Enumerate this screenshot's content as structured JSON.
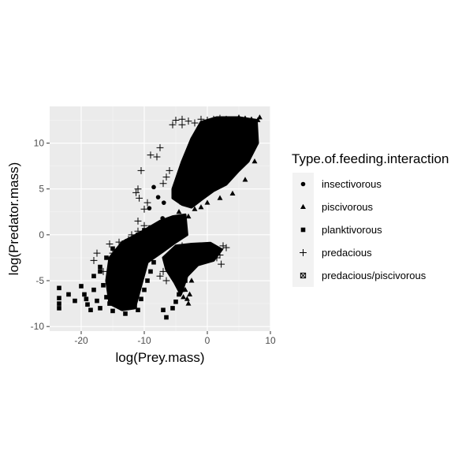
{
  "chart_data": {
    "type": "scatter",
    "xlabel": "log(Prey.mass)",
    "ylabel": "log(Predator.mass)",
    "xlim": [
      -25,
      10
    ],
    "ylim": [
      -10.5,
      14
    ],
    "x_ticks": [
      -20,
      -10,
      0,
      10
    ],
    "y_ticks": [
      -10,
      -5,
      0,
      5,
      10
    ],
    "x_tick_labels": [
      "-20",
      "-10",
      "0",
      "10"
    ],
    "y_tick_labels": [
      "-10",
      "-5",
      "0",
      "5",
      "10"
    ],
    "grid": true,
    "legend_position": "right",
    "panel_color": "#ebebeb",
    "point_color": "#000000",
    "legend": {
      "title": "Type.of.feeding.interaction",
      "entries": [
        {
          "label": "insectivorous",
          "shape": "circle"
        },
        {
          "label": "piscivorous",
          "shape": "triangle"
        },
        {
          "label": "planktivorous",
          "shape": "square"
        },
        {
          "label": "predacious",
          "shape": "plus"
        },
        {
          "label": "predacious/piscivorous",
          "shape": "square-x"
        }
      ]
    },
    "series": [
      {
        "name": "insectivorous",
        "shape": "circle",
        "points": [
          [
            -8.5,
            5.2
          ],
          [
            -7.8,
            4.1
          ],
          [
            -6.9,
            3.5
          ],
          [
            -9.2,
            2.9
          ],
          [
            -7.1,
            1.8
          ],
          [
            -6.2,
            0.9
          ]
        ]
      },
      {
        "name": "piscivorous",
        "shape": "triangle",
        "points": [
          [
            -3,
            5
          ],
          [
            -2.5,
            6.2
          ],
          [
            -2,
            7
          ],
          [
            -1.5,
            7.8
          ],
          [
            -1,
            8.5
          ],
          [
            -0.5,
            9
          ],
          [
            0,
            9.5
          ],
          [
            0.5,
            10
          ],
          [
            1,
            10.5
          ],
          [
            1.5,
            11
          ],
          [
            2,
            11.4
          ],
          [
            2.5,
            11.8
          ],
          [
            3,
            12.1
          ],
          [
            3.5,
            12.4
          ],
          [
            4,
            12.6
          ],
          [
            5,
            12.8
          ],
          [
            6,
            12.7
          ],
          [
            7,
            12.6
          ],
          [
            8,
            12.5
          ],
          [
            -4,
            3.5
          ],
          [
            -4.5,
            2.5
          ],
          [
            -3.5,
            4
          ],
          [
            1,
            5
          ],
          [
            2,
            6
          ],
          [
            3,
            7
          ],
          [
            4,
            8
          ],
          [
            5,
            9
          ],
          [
            6,
            10
          ],
          [
            7,
            11
          ],
          [
            8.3,
            12.8
          ],
          [
            7.5,
            8
          ],
          [
            6,
            6
          ],
          [
            4,
            4.5
          ],
          [
            2,
            4
          ],
          [
            0,
            3.5
          ],
          [
            -1,
            3
          ],
          [
            -2,
            2.8
          ],
          [
            -3,
            2
          ],
          [
            -4,
            -5
          ],
          [
            -3.5,
            -6
          ],
          [
            -3.2,
            -7
          ],
          [
            -3,
            -7.5
          ],
          [
            -4.5,
            -5.5
          ],
          [
            -5,
            -4.8
          ],
          [
            -2.5,
            -5
          ],
          [
            -2.8,
            -6.5
          ],
          [
            -3.8,
            -6.8
          ]
        ]
      },
      {
        "name": "planktivorous",
        "shape": "square",
        "points": [
          [
            -23.5,
            -5.8
          ],
          [
            -23.5,
            -6.9
          ],
          [
            -23.5,
            -7.5
          ],
          [
            -23.5,
            -8
          ],
          [
            -20,
            -5.6
          ],
          [
            -19.5,
            -6.5
          ],
          [
            -19.2,
            -7
          ],
          [
            -19,
            -7.6
          ],
          [
            -18.5,
            -8.2
          ],
          [
            -18,
            -6
          ],
          [
            -17.5,
            -7.2
          ],
          [
            -17,
            -8
          ],
          [
            -16.5,
            -5.5
          ],
          [
            -16,
            -6.8
          ],
          [
            -15.5,
            -7.5
          ],
          [
            -15,
            -8.3
          ],
          [
            -14.5,
            -6
          ],
          [
            -14,
            -7.2
          ],
          [
            -13.5,
            -8
          ],
          [
            -13,
            -8.6
          ],
          [
            -12.5,
            -7.5
          ],
          [
            -12,
            -6.5
          ],
          [
            -11.5,
            -7.8
          ],
          [
            -11,
            -8.2
          ],
          [
            -10.5,
            -7
          ],
          [
            -10,
            -6
          ],
          [
            -9.5,
            -5
          ],
          [
            -9,
            -4
          ],
          [
            -8.5,
            -3
          ],
          [
            -8,
            -2
          ],
          [
            -7.5,
            -1
          ],
          [
            -7,
            -0.5
          ],
          [
            -6.5,
            0
          ],
          [
            -6,
            0.4
          ],
          [
            -5.5,
            0.8
          ],
          [
            -5,
            0.3
          ],
          [
            -4.5,
            0
          ],
          [
            -14,
            -3
          ],
          [
            -13,
            -2
          ],
          [
            -12,
            -1
          ],
          [
            -11,
            0
          ],
          [
            -10,
            0.5
          ],
          [
            -9,
            0.8
          ],
          [
            -8,
            1
          ],
          [
            -16,
            -2.5
          ],
          [
            -15,
            -1.5
          ],
          [
            -17,
            -4
          ],
          [
            -6,
            -3.3
          ],
          [
            -5.5,
            -8
          ],
          [
            -5,
            -7.3
          ],
          [
            -4.5,
            -6.5
          ],
          [
            -4,
            -6
          ],
          [
            -7,
            -8.2
          ],
          [
            -6.5,
            -9
          ],
          [
            -3.5,
            -5
          ],
          [
            -3,
            -4
          ],
          [
            -2.5,
            -3.5
          ],
          [
            -2,
            -3
          ],
          [
            -1.5,
            -2.5
          ],
          [
            -1,
            -2
          ],
          [
            0,
            -1.5
          ],
          [
            1,
            -1.6
          ],
          [
            -22,
            -6.5
          ],
          [
            -21,
            -7.2
          ],
          [
            -18,
            -4.5
          ],
          [
            -17,
            -3.5
          ]
        ]
      },
      {
        "name": "predacious",
        "shape": "plus",
        "points": [
          [
            -5,
            12.5
          ],
          [
            -4,
            12.6
          ],
          [
            -3,
            12.4
          ],
          [
            -5.5,
            12
          ],
          [
            -2,
            12.2
          ],
          [
            -1,
            12.6
          ],
          [
            0,
            12.5
          ],
          [
            1,
            12.6
          ],
          [
            2,
            12.7
          ],
          [
            3,
            12.6
          ],
          [
            4,
            12.5
          ],
          [
            5,
            12.7
          ],
          [
            -4,
            12
          ],
          [
            -8,
            8.5
          ],
          [
            -9,
            8.7
          ],
          [
            -7.5,
            9.5
          ],
          [
            -6,
            7
          ],
          [
            -6.5,
            6.3
          ],
          [
            -7,
            5.6
          ],
          [
            -10.5,
            7
          ],
          [
            -11,
            5
          ],
          [
            -11.3,
            4.6
          ],
          [
            -10.8,
            4
          ],
          [
            -9.5,
            3.5
          ],
          [
            -10,
            2.8
          ],
          [
            -11,
            1.5
          ],
          [
            -12.5,
            -0.5
          ],
          [
            -13.5,
            -1
          ],
          [
            -15,
            -2
          ],
          [
            -17.5,
            -2
          ],
          [
            -16.5,
            -4
          ],
          [
            -18,
            -2.8
          ],
          [
            -15.5,
            -1
          ],
          [
            -14,
            -0.8
          ],
          [
            -12,
            0
          ],
          [
            -11,
            0.4
          ],
          [
            -10,
            1
          ],
          [
            -9.2,
            0.5
          ],
          [
            -6.5,
            -1.3
          ],
          [
            -5,
            -1.5
          ],
          [
            -4,
            -1.2
          ],
          [
            -2,
            -1.4
          ],
          [
            0,
            -1.6
          ],
          [
            1,
            -2
          ],
          [
            2,
            -2.2
          ],
          [
            2.5,
            -1.2
          ],
          [
            3,
            -1.4
          ],
          [
            2.2,
            -3.2
          ],
          [
            1.5,
            -2.5
          ],
          [
            -7,
            -4
          ],
          [
            -7.5,
            -4.5
          ],
          [
            -6.5,
            -5
          ],
          [
            -4,
            -3
          ],
          [
            -3,
            -2.5
          ]
        ]
      },
      {
        "name": "predacious/piscivorous",
        "shape": "square-x",
        "points": []
      }
    ]
  }
}
